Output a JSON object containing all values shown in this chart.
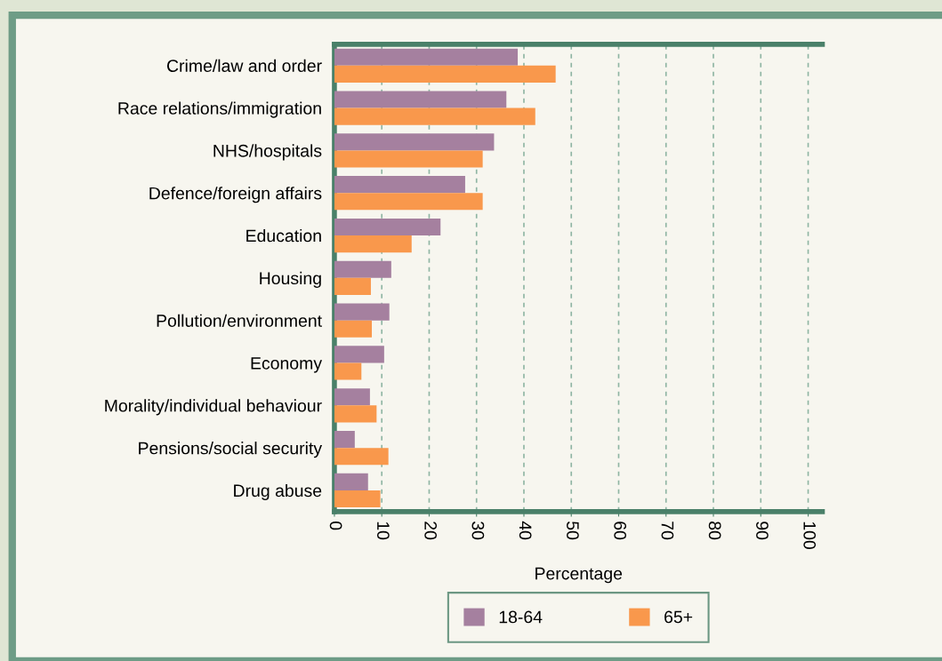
{
  "chart_data": {
    "type": "bar",
    "orientation": "horizontal",
    "xlabel": "Percentage",
    "categories": [
      "Crime/law and order",
      "Race relations/immigration",
      "NHS/hospitals",
      "Defence/foreign affairs",
      "Education",
      "Housing",
      "Pollution/environment",
      "Economy",
      "Morality/individual behaviour",
      "Pensions/social security",
      "Drug abuse"
    ],
    "series": [
      {
        "name": "18-64",
        "color": "#a5809f",
        "values": [
          38.7,
          36.3,
          33.7,
          27.6,
          22.4,
          12,
          11.6,
          10.5,
          7.5,
          4.3,
          7.1
        ]
      },
      {
        "name": "65+",
        "color": "#f9984c",
        "values": [
          46.7,
          42.4,
          31.3,
          31.3,
          16.3,
          7.7,
          7.9,
          5.7,
          8.9,
          11.4,
          9.7
        ]
      }
    ],
    "xlim": [
      0,
      103
    ],
    "xticks": [
      0,
      10,
      20,
      30,
      40,
      50,
      60,
      70,
      80,
      90,
      100
    ],
    "grid": "x",
    "legend": "bottom"
  }
}
